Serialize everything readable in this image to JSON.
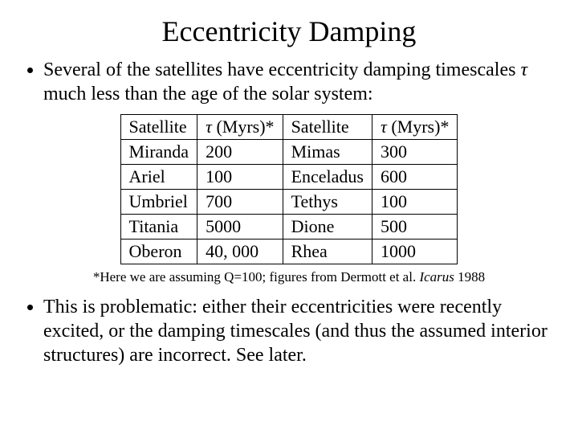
{
  "title": "Eccentricity Damping",
  "bullet1_pre": "Several of the satellites have eccentricity damping timescales ",
  "tau_symbol": "τ",
  "bullet1_post": " much less than the age of the solar system:",
  "headers": {
    "sat_a": "Satellite",
    "tau_a_pre": "τ",
    "tau_a_post": " (Myrs)*",
    "sat_b": "Satellite",
    "tau_b_pre": "τ",
    "tau_b_post": " (Myrs)*"
  },
  "rows": [
    {
      "s1": "Miranda",
      "t1": "200",
      "s2": "Mimas",
      "t2": "300"
    },
    {
      "s1": "Ariel",
      "t1": "100",
      "s2": "Enceladus",
      "t2": "600"
    },
    {
      "s1": "Umbriel",
      "t1": "700",
      "s2": "Tethys",
      "t2": "100"
    },
    {
      "s1": "Titania",
      "t1": "5000",
      "s2": "Dione",
      "t2": "500"
    },
    {
      "s1": "Oberon",
      "t1": "40, 000",
      "s2": "Rhea",
      "t2": "1000"
    }
  ],
  "footnote_pre": "*Here we are assuming Q=100; figures from Dermott et al. ",
  "footnote_journal": "Icarus",
  "footnote_post": " 1988",
  "bullet2": "This is problematic: either their eccentricities were recently excited, or the damping timescales (and thus the assumed interior structures) are incorrect. See later."
}
